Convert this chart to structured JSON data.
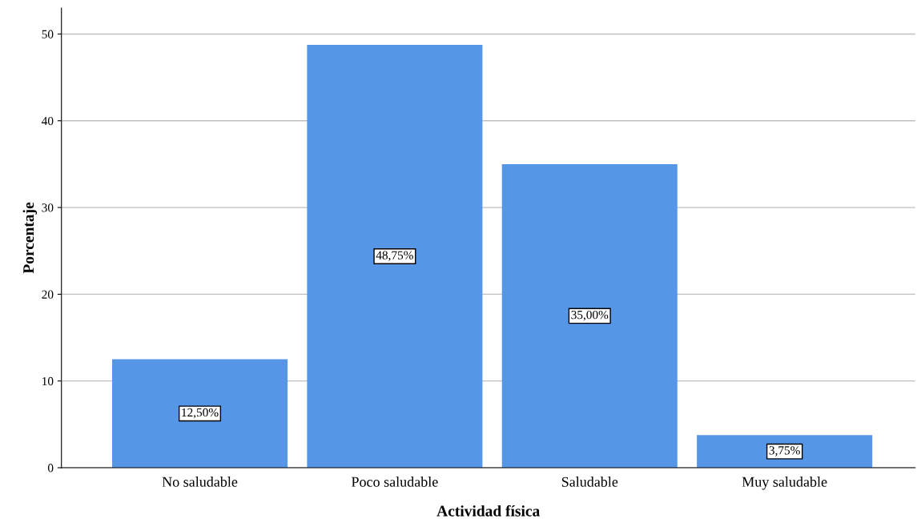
{
  "chart_data": {
    "type": "bar",
    "xlabel": "Actividad física",
    "ylabel": "Porcentaje",
    "categories": [
      "No saludable",
      "Poco saludable",
      "Saludable",
      "Muy saludable"
    ],
    "values": [
      12.5,
      48.75,
      35.0,
      3.75
    ],
    "value_labels": [
      "12,50%",
      "48,75%",
      "35,00%",
      "3,75%"
    ],
    "color": "#5596e6",
    "ylim": [
      0,
      53
    ],
    "yticks": [
      0,
      10,
      20,
      30,
      40,
      50
    ],
    "grid": "y",
    "legend": false
  }
}
